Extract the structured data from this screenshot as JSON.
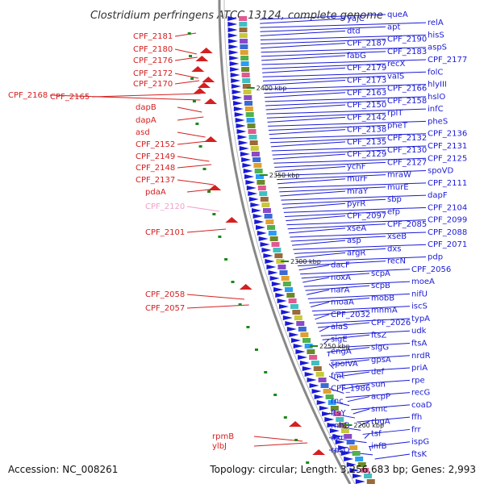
{
  "title": "Clostridium perfringens ATCC 13124, complete genome",
  "accession": "Accession: NC_008261",
  "summary": "Topology: circular; Length: 3,256,683 bp; Genes: 2,993",
  "colors": {
    "plus_strand": "#d42020",
    "minus_strand": "#1a1ad6",
    "highlight": "#f0a0c8",
    "ring": "#888888",
    "tick": "#1a8a1a"
  },
  "scale_labels": [
    "2400 kbp",
    "2350 kbp",
    "2300 kbp",
    "2250 kbp",
    "2200 kbp"
  ],
  "left_labels": [
    {
      "text": "CPF_2181",
      "highlight": false
    },
    {
      "text": "CPF_2180",
      "highlight": false
    },
    {
      "text": "CPF_2176",
      "highlight": false
    },
    {
      "text": "CPF_2172",
      "highlight": false
    },
    {
      "text": "CPF_2170",
      "highlight": false
    },
    {
      "text": "CPF_2168",
      "highlight": false
    },
    {
      "text": "CPF_2165",
      "highlight": false
    },
    {
      "text": "dapB",
      "highlight": false
    },
    {
      "text": "dapA",
      "highlight": false
    },
    {
      "text": "asd",
      "highlight": false
    },
    {
      "text": "CPF_2152",
      "highlight": false
    },
    {
      "text": "CPF_2149",
      "highlight": false
    },
    {
      "text": "CPF_2148",
      "highlight": false
    },
    {
      "text": "CPF_2137",
      "highlight": false
    },
    {
      "text": "pdaA",
      "highlight": false
    },
    {
      "text": "CPF_2120",
      "highlight": true
    },
    {
      "text": "CPF_2101",
      "highlight": false
    },
    {
      "text": "CPF_2058",
      "highlight": false
    },
    {
      "text": "CPF_2057",
      "highlight": false
    },
    {
      "text": "rpmB",
      "highlight": false
    },
    {
      "text": "ylbJ",
      "highlight": false
    }
  ],
  "right_labels": [
    "queA",
    "yajC",
    "relA",
    "apt",
    "dtd",
    "hisS",
    "CPF_2190",
    "CPF_2187",
    "aspS",
    "CPF_2183",
    "fabG",
    "CPF_2177",
    "recX",
    "CPF_2179",
    "folC",
    "valS",
    "CPF_2173",
    "hlyIII",
    "CPF_2166",
    "CPF_2163",
    "hslO",
    "CPF_2158",
    "CPF_2150",
    "infC",
    "rplT",
    "CPF_2142",
    "pheS",
    "pheT",
    "CPF_2138",
    "CPF_2136",
    "CPF_2132",
    "CPF_2135",
    "CPF_2131",
    "CPF_2130",
    "CPF_2129",
    "CPF_2125",
    "CPF_2127",
    "ychF",
    "spoVD",
    "mraW",
    "murF",
    "CPF_2111",
    "murE",
    "mraY",
    "dapF",
    "sbp",
    "pyrR",
    "CPF_2104",
    "efp",
    "CPF_2097",
    "CPF_2099",
    "CPF_2085",
    "xseA",
    "CPF_2088",
    "xseB",
    "asp",
    "CPF_2071",
    "dxs",
    "argR",
    "pdp",
    "recN",
    "dacF",
    "CPF_2056",
    "scpA",
    "noxA",
    "moeA",
    "scpB",
    "narA",
    "nifU",
    "mobB",
    "moaA",
    "iscS",
    "mnmA",
    "CPF_2032",
    "typA",
    "CPF_2026",
    "alaS",
    "udk",
    "ftsZ",
    "sigE",
    "ftsA",
    "sigG",
    "engA",
    "nrdR",
    "gpsA",
    "spoIVA",
    "priA",
    "def",
    "fmt",
    "rpe",
    "sun",
    "CPF_1986",
    "recG",
    "acpP",
    "rnc",
    "coaD",
    "smc",
    "ftsY",
    "ffh",
    "rbgA",
    "rnhB",
    "frr",
    "tsf",
    "dxr",
    "ispG",
    "infB",
    "rpsO",
    "ftsK"
  ]
}
